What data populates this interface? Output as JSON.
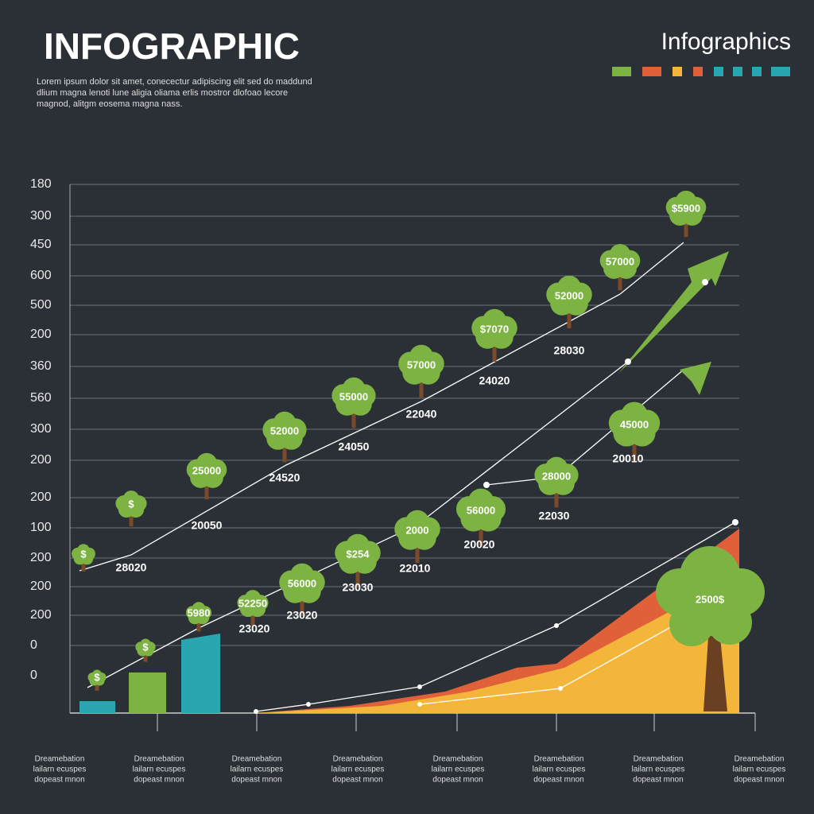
{
  "header": {
    "title": "INFOGRAPHIC",
    "body": [
      "Lorem ipsum dolor sit amet, conecectur adipiscing elit sed do maddund",
      "dlium magna lenoti lune aligia oliama erlis mostror dlofoao lecore",
      "magnod, alitgm eosema magna nass."
    ],
    "brand": "Infographics"
  },
  "axis_labels": [
    "180",
    "300",
    "450",
    "600",
    "500",
    "200",
    "360",
    "560",
    "300",
    "200",
    "200",
    "100",
    "200",
    "200",
    "200",
    "0",
    "0"
  ],
  "upper_trees": [
    "$",
    "$",
    "25000",
    "52000",
    "55000",
    "57000",
    "$7070",
    "52000",
    "57000",
    "$5900"
  ],
  "upper_captions": [
    "28020",
    "20050",
    "24520",
    "24050",
    "22040",
    "24020",
    "28030"
  ],
  "lower_trees": [
    "$",
    "$",
    "5980",
    "52250",
    "56000",
    "$254",
    "2000",
    "56000",
    "28000",
    "45000"
  ],
  "lower_captions": [
    "23020",
    "23020",
    "23030",
    "22010",
    "20020",
    "22030",
    "20010"
  ],
  "big_tree": "2500$",
  "bottom_labels": [
    [
      "Dreamebation",
      "lailarn ecuspes",
      "dopeast mnon"
    ],
    [
      "Dreamebation",
      "lailarn ecuspes",
      "dopeast mnon"
    ],
    [
      "Dreamebation",
      "lailarn ecuspes",
      "dopeast mnon"
    ],
    [
      "Dreamebation",
      "lailarn ecuspes",
      "dopeast mnon"
    ],
    [
      "Dreamebation",
      "lailarn ecuspes",
      "dopeast mnon"
    ],
    [
      "Dreamebation",
      "lailarn ecuspes",
      "dopeast mnon"
    ],
    [
      "Dreamebation",
      "lailarn ecuspes",
      "dopeast mnon"
    ],
    [
      "Dreamebation",
      "lailarn ecuspes",
      "dopeast mnon"
    ]
  ]
}
